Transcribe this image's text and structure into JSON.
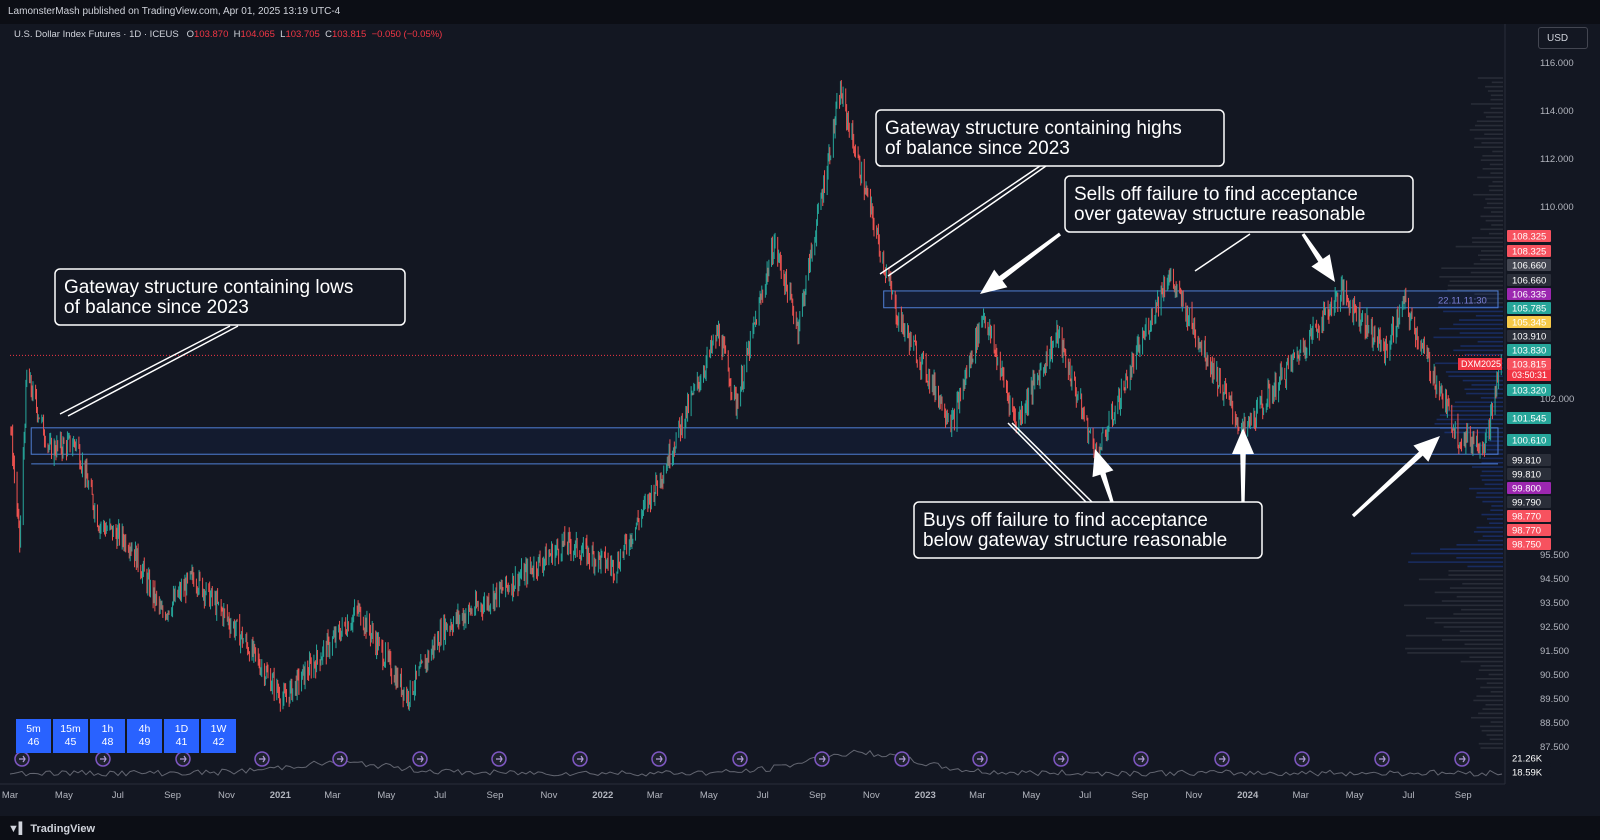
{
  "header": {
    "publisher": "LamonsterMash published on TradingView.com, Apr 01, 2025 13:19 UTC-4",
    "symbol": "U.S. Dollar Index Futures · 1D · ICEUS",
    "ohlc": {
      "o_label": "O",
      "o": "103.870",
      "h_label": "H",
      "h": "104.065",
      "l_label": "L",
      "l": "103.705",
      "c_label": "C",
      "c": "103.815",
      "chg": "−0.050 (−0.05%)"
    }
  },
  "currency": "USD",
  "footer": {
    "logo": "TradingView"
  },
  "timeframes": [
    {
      "tf": "5m",
      "val": "46"
    },
    {
      "tf": "15m",
      "val": "45"
    },
    {
      "tf": "1h",
      "val": "48"
    },
    {
      "tf": "4h",
      "val": "49"
    },
    {
      "tf": "1D",
      "val": "41"
    },
    {
      "tf": "1W",
      "val": "42"
    }
  ],
  "annotations": {
    "lows_box": [
      "Gateway structure containing lows",
      "of balance since 2023"
    ],
    "highs_box": [
      "Gateway structure containing highs",
      "of balance since 2023"
    ],
    "sells_box": [
      "Sells off failure to find acceptance",
      "over gateway structure reasonable"
    ],
    "buys_box": [
      "Buys off failure to find acceptance",
      "below gateway structure reasonable"
    ],
    "range_label": "22.11.11:30"
  },
  "colors": {
    "bg": "#131722",
    "up": "#26a69a",
    "down": "#ef5350",
    "zone": "#4f7fd6",
    "accent": "#2962ff"
  },
  "chart_data": {
    "type": "candlestick",
    "title": "U.S. Dollar Index Futures",
    "ylim": [
      86.8,
      117.2
    ],
    "y_ticks": [
      "116.000",
      "114.000",
      "112.000",
      "110.000",
      "102.000",
      "95.500",
      "94.500",
      "93.500",
      "92.500",
      "91.500",
      "90.500",
      "89.500",
      "88.500",
      "87.500"
    ],
    "x_ticks": [
      "Mar",
      "May",
      "Jul",
      "Sep",
      "Nov",
      "2021",
      "Mar",
      "May",
      "Jul",
      "Sep",
      "Nov",
      "2022",
      "Mar",
      "May",
      "Jul",
      "Sep",
      "Nov",
      "2023",
      "Mar",
      "May",
      "Jul",
      "Sep",
      "Nov",
      "2024",
      "Mar",
      "May",
      "Jul",
      "Sep"
    ],
    "x_range": [
      "2020-03",
      "2024-10"
    ],
    "anchor_points": [
      {
        "d": "2020-03-01",
        "v": 101.2
      },
      {
        "d": "2020-03-12",
        "v": 96.0
      },
      {
        "d": "2020-03-20",
        "v": 103.0
      },
      {
        "d": "2020-04-15",
        "v": 99.9
      },
      {
        "d": "2020-05-15",
        "v": 100.2
      },
      {
        "d": "2020-06-10",
        "v": 96.8
      },
      {
        "d": "2020-07-15",
        "v": 96.0
      },
      {
        "d": "2020-08-20",
        "v": 93.0
      },
      {
        "d": "2020-09-25",
        "v": 94.6
      },
      {
        "d": "2020-11-10",
        "v": 92.5
      },
      {
        "d": "2021-01-05",
        "v": 89.5
      },
      {
        "d": "2021-03-30",
        "v": 93.2
      },
      {
        "d": "2021-05-25",
        "v": 89.6
      },
      {
        "d": "2021-07-05",
        "v": 92.5
      },
      {
        "d": "2021-08-20",
        "v": 93.5
      },
      {
        "d": "2021-11-20",
        "v": 96.0
      },
      {
        "d": "2022-01-15",
        "v": 95.0
      },
      {
        "d": "2022-03-10",
        "v": 99.0
      },
      {
        "d": "2022-05-12",
        "v": 104.8
      },
      {
        "d": "2022-06-01",
        "v": 101.8
      },
      {
        "d": "2022-07-14",
        "v": 108.5
      },
      {
        "d": "2022-08-10",
        "v": 105.0
      },
      {
        "d": "2022-09-27",
        "v": 114.8
      },
      {
        "d": "2022-11-30",
        "v": 105.5
      },
      {
        "d": "2023-02-01",
        "v": 101.0
      },
      {
        "d": "2023-03-08",
        "v": 105.6
      },
      {
        "d": "2023-04-14",
        "v": 101.0
      },
      {
        "d": "2023-05-31",
        "v": 104.7
      },
      {
        "d": "2023-07-14",
        "v": 99.6
      },
      {
        "d": "2023-10-03",
        "v": 107.2
      },
      {
        "d": "2023-12-27",
        "v": 100.6
      },
      {
        "d": "2024-04-16",
        "v": 106.5
      },
      {
        "d": "2024-06-05",
        "v": 104.0
      },
      {
        "d": "2024-06-26",
        "v": 106.0
      },
      {
        "d": "2024-08-27",
        "v": 100.4
      },
      {
        "d": "2024-09-27",
        "v": 100.2
      },
      {
        "d": "2024-10-15",
        "v": 103.8
      }
    ],
    "zones": [
      {
        "name": "upper gateway",
        "from": 105.8,
        "to": 106.5
      },
      {
        "name": "lower gateway",
        "from": 99.7,
        "to": 100.8
      }
    ],
    "price_labels": [
      {
        "v": "108.325",
        "c": "#f7525f"
      },
      {
        "v": "108.325",
        "c": "#f7525f"
      },
      {
        "v": "106.660",
        "c": "#434651"
      },
      {
        "v": "106.660",
        "c": "#2a2e39"
      },
      {
        "v": "106.335",
        "c": "#9c27b0"
      },
      {
        "v": "105.785",
        "c": "#26a69a"
      },
      {
        "v": "105.345",
        "c": "#f7c948"
      },
      {
        "v": "103.910",
        "c": "#2a2e39"
      },
      {
        "v": "103.830",
        "c": "#26a69a"
      },
      {
        "v": "103.815",
        "c": "#f7525f"
      },
      {
        "v": "103.320",
        "c": "#26a69a"
      },
      {
        "v": "101.545",
        "c": "#26a69a"
      },
      {
        "v": "100.610",
        "c": "#26a69a"
      },
      {
        "v": "99.810",
        "c": "#2a2e39"
      },
      {
        "v": "99.810",
        "c": "#2a2e39"
      },
      {
        "v": "99.800",
        "c": "#9c27b0"
      },
      {
        "v": "99.790",
        "c": "#2a2e39"
      },
      {
        "v": "98.770",
        "c": "#f7525f"
      },
      {
        "v": "98.770",
        "c": "#f7525f"
      },
      {
        "v": "98.750",
        "c": "#f7525f"
      },
      {
        "v": "21.26K",
        "c": "#131722"
      },
      {
        "v": "18.59K",
        "c": "#131722"
      }
    ],
    "contract_label": "DXM2025",
    "countdown": "03:50:31"
  }
}
